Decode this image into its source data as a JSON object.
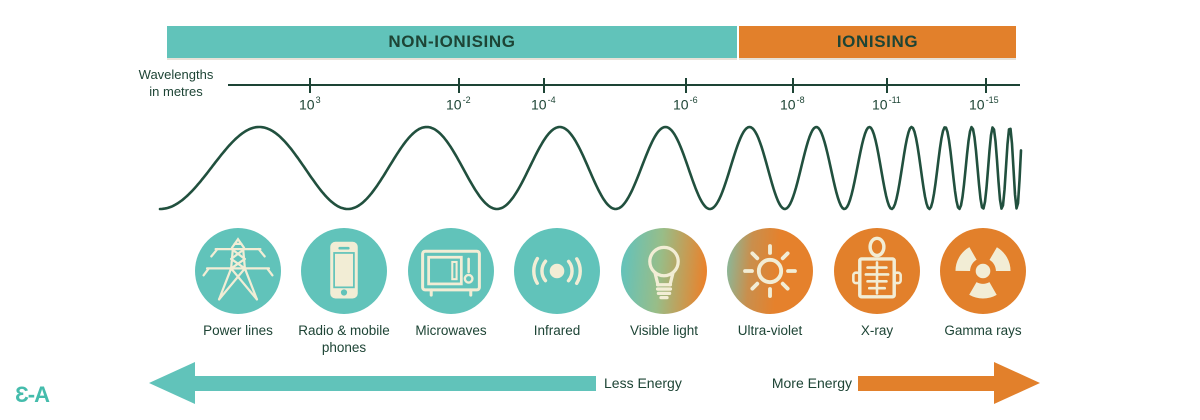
{
  "banner": {
    "non_ionising": "NON-IONISING",
    "ionising": "IONISING"
  },
  "axis": {
    "label_line1": "Wavelengths",
    "label_line2": "in metres",
    "ticks": [
      {
        "mantissa": "10",
        "exponent": "3"
      },
      {
        "mantissa": "10",
        "exponent": "-2"
      },
      {
        "mantissa": "10",
        "exponent": "-4"
      },
      {
        "mantissa": "10",
        "exponent": "-6"
      },
      {
        "mantissa": "10",
        "exponent": "-8"
      },
      {
        "mantissa": "10",
        "exponent": "-11"
      },
      {
        "mantissa": "10",
        "exponent": "-15"
      }
    ]
  },
  "spectrum_items": [
    {
      "label": "Power lines",
      "icon": "power-lines-icon",
      "zone": "non-ionising"
    },
    {
      "label": "Radio & mobile phones",
      "icon": "mobile-phone-icon",
      "zone": "non-ionising"
    },
    {
      "label": "Microwaves",
      "icon": "microwave-icon",
      "zone": "non-ionising"
    },
    {
      "label": "Infrared",
      "icon": "infrared-icon",
      "zone": "non-ionising"
    },
    {
      "label": "Visible light",
      "icon": "light-bulb-icon",
      "zone": "transition"
    },
    {
      "label": "Ultra-violet",
      "icon": "sun-icon",
      "zone": "ionising"
    },
    {
      "label": "X-ray",
      "icon": "xray-icon",
      "zone": "ionising"
    },
    {
      "label": "Gamma rays",
      "icon": "radiation-icon",
      "zone": "ionising"
    }
  ],
  "energy": {
    "less": "Less Energy",
    "more": "More Energy"
  },
  "logo": "Ɛ-A",
  "colors": {
    "teal": "#61C3BA",
    "orange": "#E2802B",
    "dark_green": "#1D4435",
    "cream": "#F2EDD5"
  }
}
